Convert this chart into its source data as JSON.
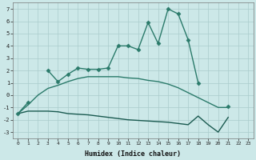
{
  "xlabel": "Humidex (Indice chaleur)",
  "x": [
    0,
    1,
    2,
    3,
    4,
    5,
    6,
    7,
    8,
    9,
    10,
    11,
    12,
    13,
    14,
    15,
    16,
    17,
    18,
    19,
    20,
    21,
    22,
    23
  ],
  "upper_y": [
    -1.5,
    -0.6,
    null,
    2.0,
    1.1,
    1.7,
    2.2,
    2.1,
    2.1,
    2.2,
    4.0,
    4.0,
    3.7,
    5.9,
    4.2,
    7.0,
    6.6,
    4.5,
    1.0,
    null,
    null,
    -0.9,
    null,
    null
  ],
  "middle_y": [
    -1.5,
    -0.8,
    0.0,
    0.55,
    0.8,
    1.1,
    1.35,
    1.5,
    1.5,
    1.5,
    1.5,
    1.4,
    1.35,
    1.2,
    1.1,
    0.9,
    0.6,
    0.2,
    -0.2,
    -0.6,
    -1.0,
    -1.0,
    null,
    null
  ],
  "lower_y": [
    -1.5,
    -1.3,
    -1.3,
    -1.3,
    -1.35,
    -1.5,
    -1.55,
    -1.6,
    -1.7,
    -1.8,
    -1.9,
    -2.0,
    -2.05,
    -2.1,
    -2.15,
    -2.2,
    -2.3,
    -2.4,
    -1.7,
    -2.4,
    -3.0,
    -1.8,
    null,
    null
  ],
  "ylim": [
    -3.5,
    7.5
  ],
  "xlim": [
    -0.5,
    23.5
  ],
  "bg_color": "#cce8e8",
  "grid_color": "#aacccc",
  "line_color": "#2a7a6a",
  "line_color2": "#1a5a50",
  "marker_size": 2.5
}
